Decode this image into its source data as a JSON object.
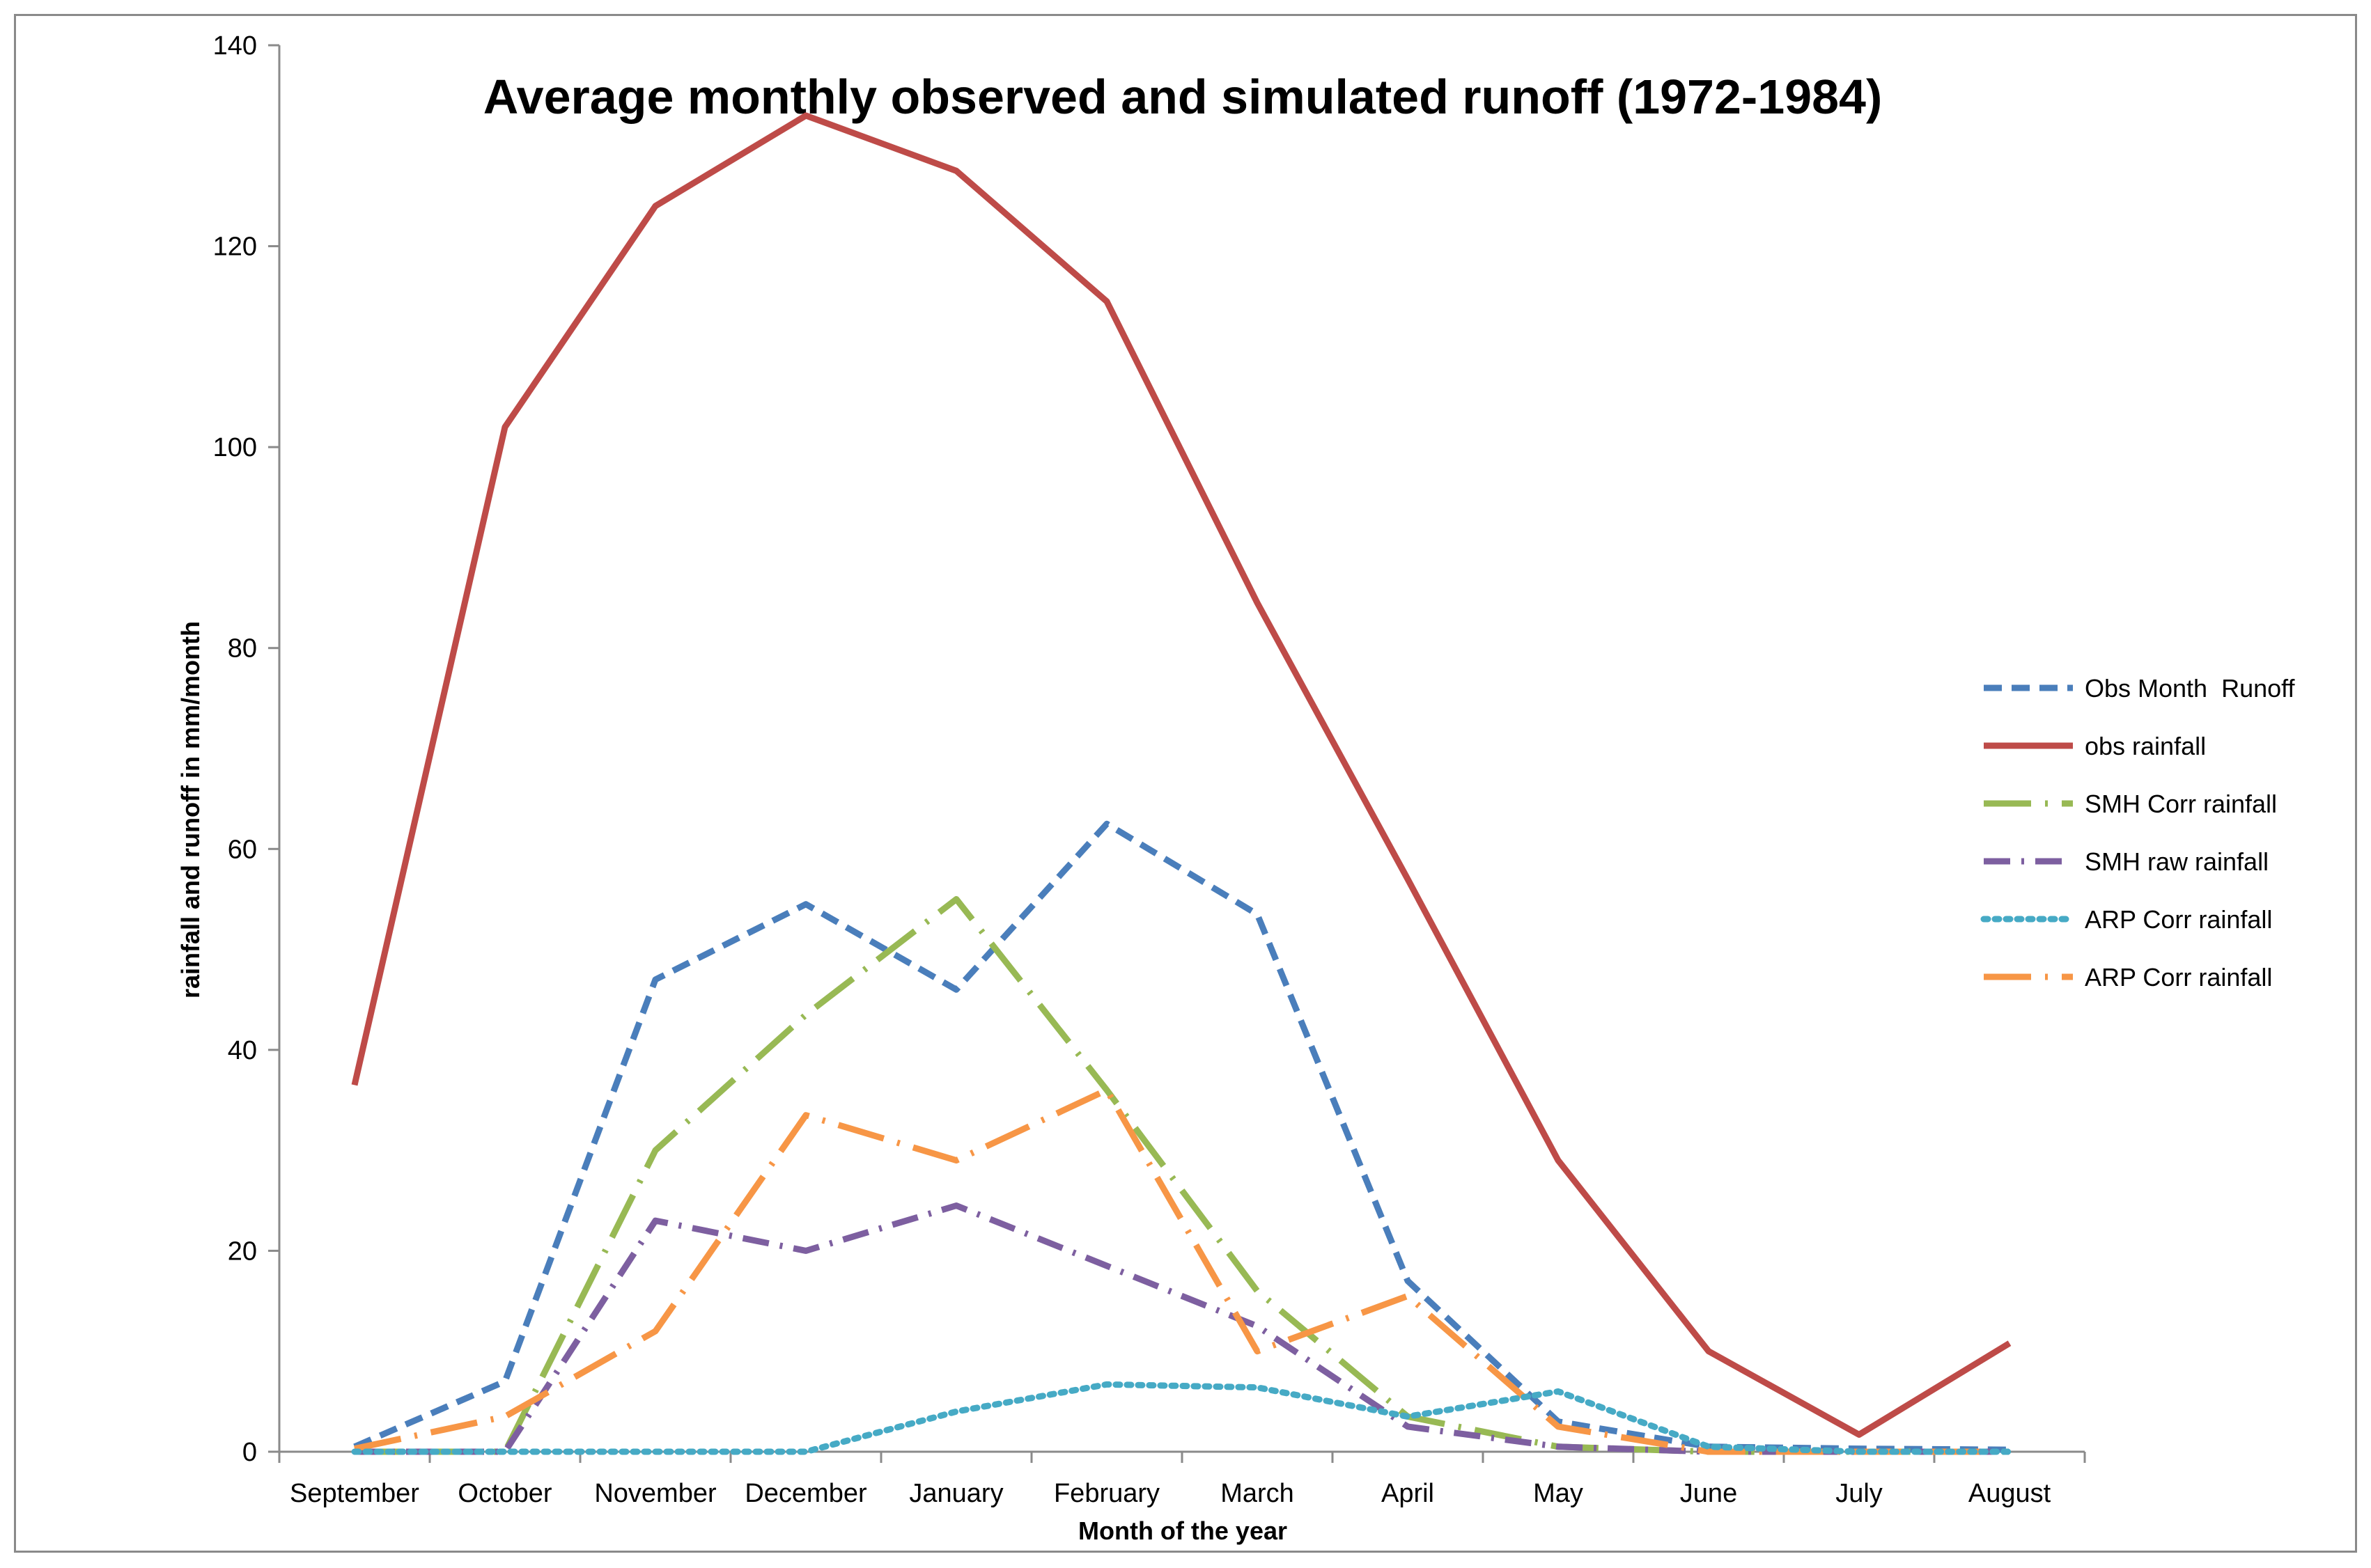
{
  "chart_data": {
    "type": "line",
    "title": "Average monthly observed and simulated runoff (1972-1984)",
    "xlabel": "Month of the year",
    "ylabel": "rainfall and runoff in mm/month",
    "ylim": [
      0,
      140
    ],
    "yticks": [
      0,
      20,
      40,
      60,
      80,
      100,
      120,
      140
    ],
    "grid": false,
    "legend_position": "right",
    "categories": [
      "September",
      "October",
      "November",
      "December",
      "January",
      "February",
      "March",
      "April",
      "May",
      "June",
      "July",
      "August"
    ],
    "series": [
      {
        "name": "Obs Month  Runoff",
        "color": "#4a7ebb",
        "dash": "dash",
        "values": [
          0.5,
          7,
          47,
          54.5,
          46,
          62.5,
          53.5,
          17,
          3,
          0.5,
          0.3,
          0.2
        ]
      },
      {
        "name": "obs rainfall",
        "color": "#be4b48",
        "dash": "solid",
        "values": [
          36.5,
          102,
          124,
          133,
          127.5,
          114.5,
          84.5,
          57,
          29,
          10,
          1.7,
          10.8
        ]
      },
      {
        "name": "SMH Corr rainfall",
        "color": "#98b954",
        "dash": "longdashdot",
        "values": [
          0,
          0,
          30,
          43.5,
          55,
          36,
          16,
          3.5,
          0.5,
          0,
          0,
          0
        ]
      },
      {
        "name": "SMH raw rainfall",
        "color": "#7d5fa0",
        "dash": "dashdot",
        "values": [
          0,
          0,
          23,
          20,
          24.5,
          18.5,
          12.5,
          2.5,
          0.5,
          0,
          0,
          0
        ]
      },
      {
        "name": "ARP Corr rainfall",
        "color": "#46aac5",
        "dash": "dot",
        "values": [
          0,
          0,
          0,
          0,
          4,
          6.7,
          6.4,
          3.5,
          6,
          0.5,
          0,
          0
        ]
      },
      {
        "name": "ARP Corr rainfall",
        "color": "#f79646",
        "dash": "longdashdot",
        "values": [
          0.3,
          3.5,
          12,
          33.5,
          29,
          36,
          10,
          15.5,
          2.5,
          0,
          0,
          0
        ]
      }
    ]
  }
}
